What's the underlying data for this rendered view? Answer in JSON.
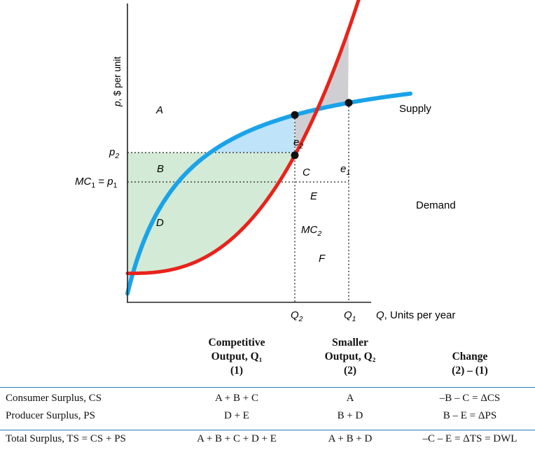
{
  "chart_data": {
    "type": "line",
    "xlabel": "Q, Units per year",
    "ylabel": "p, $ per unit",
    "x_ticks": [
      "Q2",
      "Q1"
    ],
    "y_ticks": [
      "p2",
      "MC1 = p1"
    ],
    "series": [
      {
        "name": "Demand",
        "color": "#1aa3e8"
      },
      {
        "name": "Supply",
        "color": "#e8231b"
      }
    ],
    "points": [
      {
        "label": "e2",
        "on": "Demand",
        "at": "Q2"
      },
      {
        "label": "e1",
        "on": "Demand and Supply",
        "at": "Q1"
      },
      {
        "label": "MC2",
        "on": "Supply",
        "at": "Q2"
      }
    ],
    "regions": [
      {
        "label": "A",
        "color": "#bfe3f8"
      },
      {
        "label": "B",
        "color": "#d3ead6"
      },
      {
        "label": "C",
        "color": "#cfcfd3"
      },
      {
        "label": "D",
        "color": "#d3ead6"
      },
      {
        "label": "E",
        "color": "#cfcfd3"
      },
      {
        "label": "F",
        "color": "none"
      }
    ],
    "grid": false,
    "legend": "none"
  },
  "table": {
    "headers": [
      {
        "lines": [
          "Competitive",
          "Output, Q₁",
          "(1)"
        ]
      },
      {
        "lines": [
          "Smaller",
          "Output, Q₂",
          "(2)"
        ]
      },
      {
        "lines": [
          "Change",
          "(2) – (1)"
        ]
      }
    ],
    "rows": [
      {
        "label": "Consumer Surplus, CS",
        "col1": "A + B + C",
        "col2": "A",
        "col3": "–B – C = ΔCS"
      },
      {
        "label": "Producer Surplus, PS",
        "col1": "D + E",
        "col2": "B + D",
        "col3": "B – E = ΔPS"
      },
      {
        "label": "Total Surplus, TS = CS + PS",
        "col1": "A + B + C + D + E",
        "col2": "A + B + D",
        "col3": "–C – E = ΔTS = DWL"
      }
    ]
  }
}
